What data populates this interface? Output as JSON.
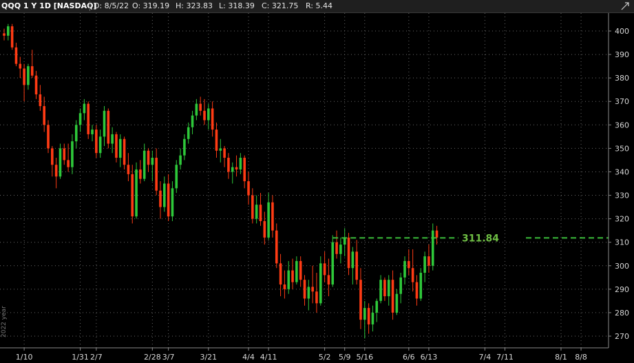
{
  "header": {
    "symbol_label": "QQQ 1 Y 1D [NASDAQ]",
    "date": "D: 8/5/22",
    "open": "O: 319.19",
    "high": "H: 323.83",
    "low": "L: 318.39",
    "close": "C: 321.75",
    "range": "R: 5.44",
    "corner_icon": "maximize-icon"
  },
  "side_label": "2022 year",
  "colors": {
    "up": "#2ec83a",
    "down": "#ff3b14",
    "level": "#3cc13c",
    "level_text": "#6fbf44",
    "grid": "#6a6a6a",
    "background": "#000000"
  },
  "chart_data": {
    "type": "candlestick",
    "title": "",
    "xlabel": "",
    "ylabel": "",
    "ylim": [
      265,
      405
    ],
    "y_ticks": [
      270,
      280,
      290,
      300,
      310,
      320,
      330,
      340,
      350,
      360,
      370,
      380,
      390,
      400
    ],
    "x_tick_labels": [
      "1/10",
      "1/31",
      "2/7",
      "2/28",
      "3/7",
      "3/21",
      "4/4",
      "4/11",
      "5/2",
      "5/9",
      "5/16",
      "6/6",
      "6/13",
      "7/4",
      "7/11",
      "8/1",
      "8/8"
    ],
    "x_tick_bars": [
      5,
      19,
      23,
      37,
      41,
      51,
      61,
      66,
      80,
      85,
      90,
      101,
      106,
      120,
      125,
      139,
      144
    ],
    "grid": true,
    "level": {
      "value": 311.84,
      "label": "311.84",
      "start_bar": 82
    },
    "candles": [
      [
        399,
        401,
        396,
        398
      ],
      [
        398,
        403,
        396,
        402
      ],
      [
        402,
        403,
        392,
        393
      ],
      [
        393,
        395,
        385,
        386
      ],
      [
        386,
        389,
        380,
        384
      ],
      [
        384,
        386,
        370,
        377
      ],
      [
        377,
        386,
        375,
        385
      ],
      [
        385,
        392,
        380,
        381
      ],
      [
        381,
        383,
        371,
        373
      ],
      [
        373,
        377,
        366,
        368
      ],
      [
        368,
        372,
        357,
        360
      ],
      [
        360,
        362,
        348,
        350
      ],
      [
        350,
        351,
        338,
        343
      ],
      [
        343,
        346,
        333,
        338
      ],
      [
        338,
        352,
        337,
        350
      ],
      [
        350,
        352,
        343,
        345
      ],
      [
        345,
        352,
        340,
        342
      ],
      [
        342,
        356,
        339,
        353
      ],
      [
        353,
        362,
        350,
        360
      ],
      [
        360,
        367,
        357,
        365
      ],
      [
        365,
        371,
        362,
        369
      ],
      [
        369,
        370,
        354,
        356
      ],
      [
        356,
        360,
        353,
        358
      ],
      [
        358,
        360,
        346,
        348
      ],
      [
        348,
        358,
        346,
        355
      ],
      [
        355,
        368,
        351,
        366
      ],
      [
        366,
        367,
        350,
        352
      ],
      [
        352,
        359,
        348,
        356
      ],
      [
        356,
        357,
        344,
        346
      ],
      [
        346,
        356,
        342,
        354
      ],
      [
        354,
        355,
        341,
        343
      ],
      [
        343,
        348,
        336,
        339
      ],
      [
        339,
        343,
        318,
        321
      ],
      [
        321,
        344,
        320,
        341
      ],
      [
        341,
        345,
        335,
        337
      ],
      [
        337,
        352,
        336,
        349
      ],
      [
        349,
        350,
        340,
        343
      ],
      [
        343,
        349,
        336,
        346
      ],
      [
        346,
        350,
        330,
        332
      ],
      [
        332,
        336,
        320,
        325
      ],
      [
        325,
        338,
        323,
        335
      ],
      [
        335,
        339,
        319,
        321
      ],
      [
        321,
        336,
        319,
        333
      ],
      [
        333,
        345,
        331,
        343
      ],
      [
        343,
        350,
        341,
        347
      ],
      [
        347,
        356,
        345,
        354
      ],
      [
        354,
        361,
        352,
        359
      ],
      [
        359,
        366,
        356,
        364
      ],
      [
        364,
        371,
        362,
        369
      ],
      [
        369,
        372,
        364,
        366
      ],
      [
        366,
        371,
        360,
        362
      ],
      [
        362,
        369,
        358,
        367
      ],
      [
        367,
        370,
        355,
        358
      ],
      [
        358,
        361,
        346,
        349
      ],
      [
        349,
        354,
        344,
        350
      ],
      [
        350,
        351,
        342,
        346
      ],
      [
        346,
        348,
        337,
        340
      ],
      [
        340,
        344,
        335,
        342
      ],
      [
        342,
        347,
        338,
        341
      ],
      [
        341,
        348,
        339,
        346
      ],
      [
        346,
        347,
        333,
        336
      ],
      [
        336,
        340,
        326,
        330
      ],
      [
        330,
        333,
        318,
        320
      ],
      [
        320,
        330,
        318,
        326
      ],
      [
        326,
        331,
        317,
        319
      ],
      [
        319,
        323,
        309,
        312
      ],
      [
        312,
        331,
        311,
        327
      ],
      [
        327,
        330,
        312,
        315
      ],
      [
        315,
        318,
        299,
        301
      ],
      [
        301,
        305,
        287,
        292
      ],
      [
        292,
        298,
        286,
        290
      ],
      [
        290,
        302,
        288,
        298
      ],
      [
        298,
        303,
        290,
        293
      ],
      [
        293,
        304,
        292,
        302
      ],
      [
        302,
        304,
        291,
        294
      ],
      [
        294,
        296,
        283,
        286
      ],
      [
        286,
        294,
        281,
        291
      ],
      [
        291,
        300,
        284,
        289
      ],
      [
        289,
        297,
        280,
        284
      ],
      [
        284,
        304,
        283,
        301
      ],
      [
        301,
        306,
        293,
        296
      ],
      [
        296,
        303,
        287,
        292
      ],
      [
        292,
        313,
        291,
        310
      ],
      [
        310,
        315,
        303,
        305
      ],
      [
        305,
        312,
        301,
        309
      ],
      [
        309,
        316,
        304,
        312
      ],
      [
        312,
        314,
        296,
        299
      ],
      [
        299,
        308,
        292,
        306
      ],
      [
        306,
        311,
        292,
        294
      ],
      [
        294,
        299,
        273,
        277
      ],
      [
        277,
        285,
        269,
        282
      ],
      [
        282,
        284,
        271,
        275
      ],
      [
        275,
        283,
        272,
        280
      ],
      [
        280,
        286,
        276,
        285
      ],
      [
        285,
        296,
        284,
        294
      ],
      [
        294,
        295,
        285,
        287
      ],
      [
        287,
        296,
        283,
        294
      ],
      [
        294,
        298,
        277,
        280
      ],
      [
        280,
        290,
        279,
        288
      ],
      [
        288,
        297,
        284,
        295
      ],
      [
        295,
        304,
        292,
        302
      ],
      [
        302,
        307,
        296,
        299
      ],
      [
        299,
        307,
        289,
        293
      ],
      [
        293,
        296,
        283,
        286
      ],
      [
        286,
        299,
        285,
        297
      ],
      [
        297,
        306,
        293,
        304
      ],
      [
        304,
        309,
        297,
        300
      ],
      [
        300,
        318,
        298,
        315
      ],
      [
        315,
        317,
        309,
        312
      ]
    ]
  }
}
